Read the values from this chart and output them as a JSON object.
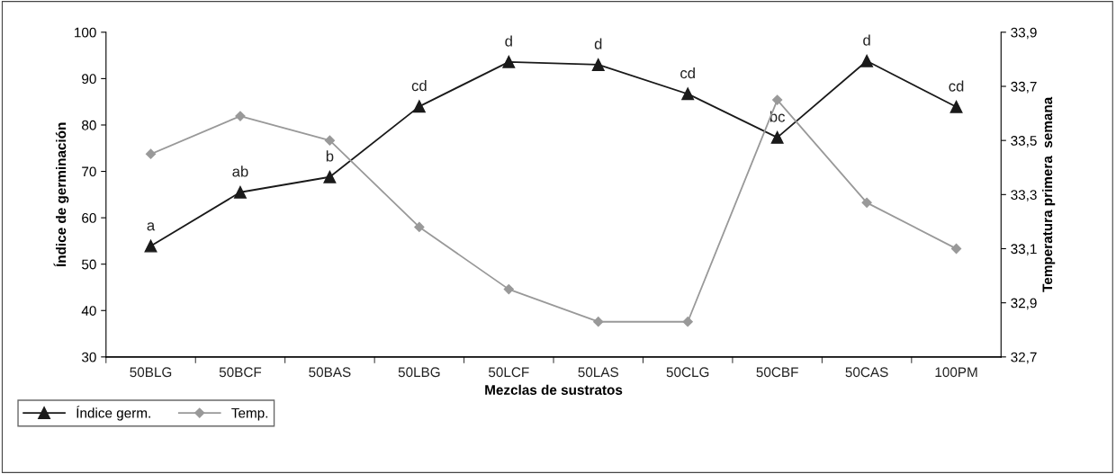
{
  "chart_data": {
    "type": "line",
    "xlabel": "Mezclas de sustratos",
    "ylabel": "Índice de germinación",
    "y2label": "Temperatura primera  semana",
    "categories": [
      "50BLG",
      "50BCF",
      "50BAS",
      "50LBG",
      "50LCF",
      "50LAS",
      "50CLG",
      "50CBF",
      "50CAS",
      "100PM"
    ],
    "series": [
      {
        "name": "Índice germ.",
        "color": "#1a1a1a",
        "marker": "triangle",
        "values": [
          53.9,
          65.5,
          68.8,
          84.0,
          93.6,
          93.0,
          86.7,
          77.3,
          93.8,
          83.9
        ]
      },
      {
        "name": "Temp.",
        "color": "#999999",
        "marker": "diamond",
        "axis": "y2",
        "values": [
          33.45,
          33.59,
          33.5,
          33.18,
          32.95,
          32.83,
          32.83,
          33.65,
          33.27,
          33.1
        ]
      }
    ],
    "ylim": [
      30,
      100
    ],
    "yticks": [
      30,
      40,
      50,
      60,
      70,
      80,
      90,
      100
    ],
    "y2lim": [
      32.7,
      33.9
    ],
    "y2ticks": [
      {
        "value": 32.7,
        "label": "32,7"
      },
      {
        "value": 32.9,
        "label": "32,9"
      },
      {
        "value": 33.1,
        "label": "33,1"
      },
      {
        "value": 33.3,
        "label": "33,3"
      },
      {
        "value": 33.5,
        "label": "33,5"
      },
      {
        "value": 33.7,
        "label": "33,7"
      },
      {
        "value": 33.9,
        "label": "33,9"
      }
    ],
    "annotations": [
      {
        "text": "a",
        "x": "50BLG",
        "y": 53.9
      },
      {
        "text": "ab",
        "x": "50BCF",
        "y": 65.5
      },
      {
        "text": "b",
        "x": "50BAS",
        "y": 68.8
      },
      {
        "text": "cd",
        "x": "50LBG",
        "y": 84.0
      },
      {
        "text": "d",
        "x": "50LCF",
        "y": 93.6
      },
      {
        "text": "d",
        "x": "50LAS",
        "y": 93.0
      },
      {
        "text": "cd",
        "x": "50CLG",
        "y": 86.7
      },
      {
        "text": "bc",
        "x": "50CBF",
        "y": 77.3
      },
      {
        "text": "d",
        "x": "50CAS",
        "y": 93.8
      },
      {
        "text": "cd",
        "x": "100PM",
        "y": 83.9
      }
    ],
    "grid": false,
    "legend": "bottom left",
    "line_style": "solid"
  }
}
